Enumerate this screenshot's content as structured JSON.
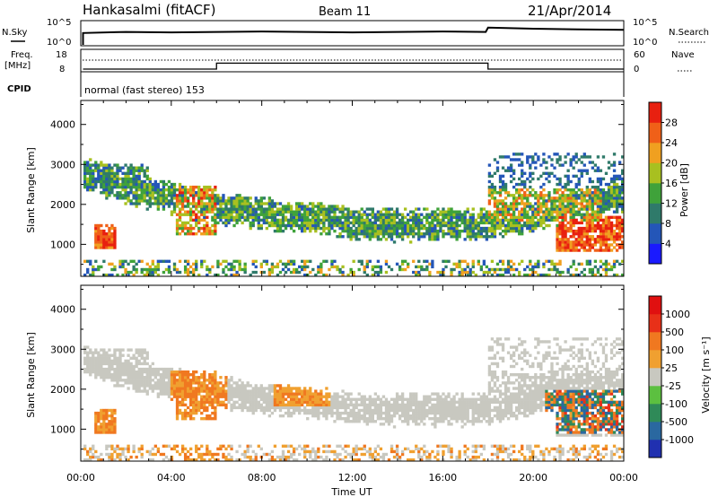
{
  "header": {
    "title": "Hankasalmi (fitACF)",
    "beam": "Beam 11",
    "date": "21/Apr/2014",
    "cpid_name": "normal (fast stereo) 153"
  },
  "aux": {
    "nsky_label": "N.Sky",
    "nsearch_label": "N.Search",
    "freq_label_1": "Freq.",
    "freq_label_2": "[MHz]",
    "cpid_label": "CPID",
    "nave_label": "Nave",
    "noise_ticks_left": [
      "10^5",
      "10^0"
    ],
    "noise_ticks_right": [
      "10^5",
      "10^0"
    ],
    "freq_ticks_left": [
      "18",
      "8"
    ],
    "nave_ticks_right": [
      "60",
      "0"
    ]
  },
  "chart_data": [
    {
      "type": "heatmap",
      "name": "power",
      "xlabel": "Time UT",
      "ylabel": "Slant Range [km]",
      "x_ticks": [
        "00:00",
        "04:00",
        "08:00",
        "12:00",
        "16:00",
        "20:00",
        "00:00"
      ],
      "y_ticks": [
        "1000",
        "2000",
        "3000",
        "4000"
      ],
      "ylim": [
        200,
        4600
      ],
      "colorbar": {
        "label": "Power [dB]",
        "ticks": [
          "4",
          "8",
          "12",
          "16",
          "20",
          "24",
          "28"
        ],
        "range": [
          0,
          32
        ],
        "colors": [
          "#1a1aff",
          "#2456b8",
          "#2f7a6a",
          "#3fa23a",
          "#a8c020",
          "#f0a020",
          "#f06018",
          "#e82010"
        ]
      }
    },
    {
      "type": "heatmap",
      "name": "velocity",
      "xlabel": "Time UT",
      "ylabel": "Slant Range [km]",
      "x_ticks": [
        "00:00",
        "04:00",
        "08:00",
        "12:00",
        "16:00",
        "20:00",
        "00:00"
      ],
      "y_ticks": [
        "1000",
        "2000",
        "3000",
        "4000"
      ],
      "ylim": [
        200,
        4600
      ],
      "colorbar": {
        "label": "Velocity [m s⁻¹]",
        "ticks": [
          "1000",
          "500",
          "100",
          "25",
          "-25",
          "-100",
          "-500",
          "-1000"
        ],
        "colors": [
          "#2030b0",
          "#2a68a0",
          "#2f8a58",
          "#5cc040",
          "#c8c8c0",
          "#f0a030",
          "#f07820",
          "#e83018",
          "#e01010"
        ]
      }
    }
  ],
  "noise_series": {
    "name": "N.Sky",
    "x_hours": [
      0.1,
      2,
      4,
      6,
      8,
      10,
      12,
      14,
      16,
      17.9,
      18,
      20,
      22,
      24
    ],
    "level_rel": [
      0.55,
      0.6,
      0.58,
      0.6,
      0.62,
      0.6,
      0.58,
      0.6,
      0.62,
      0.6,
      0.8,
      0.75,
      0.72,
      0.7
    ]
  },
  "nave_series": {
    "name": "Nave",
    "segments": [
      {
        "from": 0.1,
        "to": 6.0,
        "value": 0
      },
      {
        "from": 6.0,
        "to": 18.0,
        "value": 18
      },
      {
        "from": 18.0,
        "to": 24,
        "value": 0
      }
    ]
  }
}
